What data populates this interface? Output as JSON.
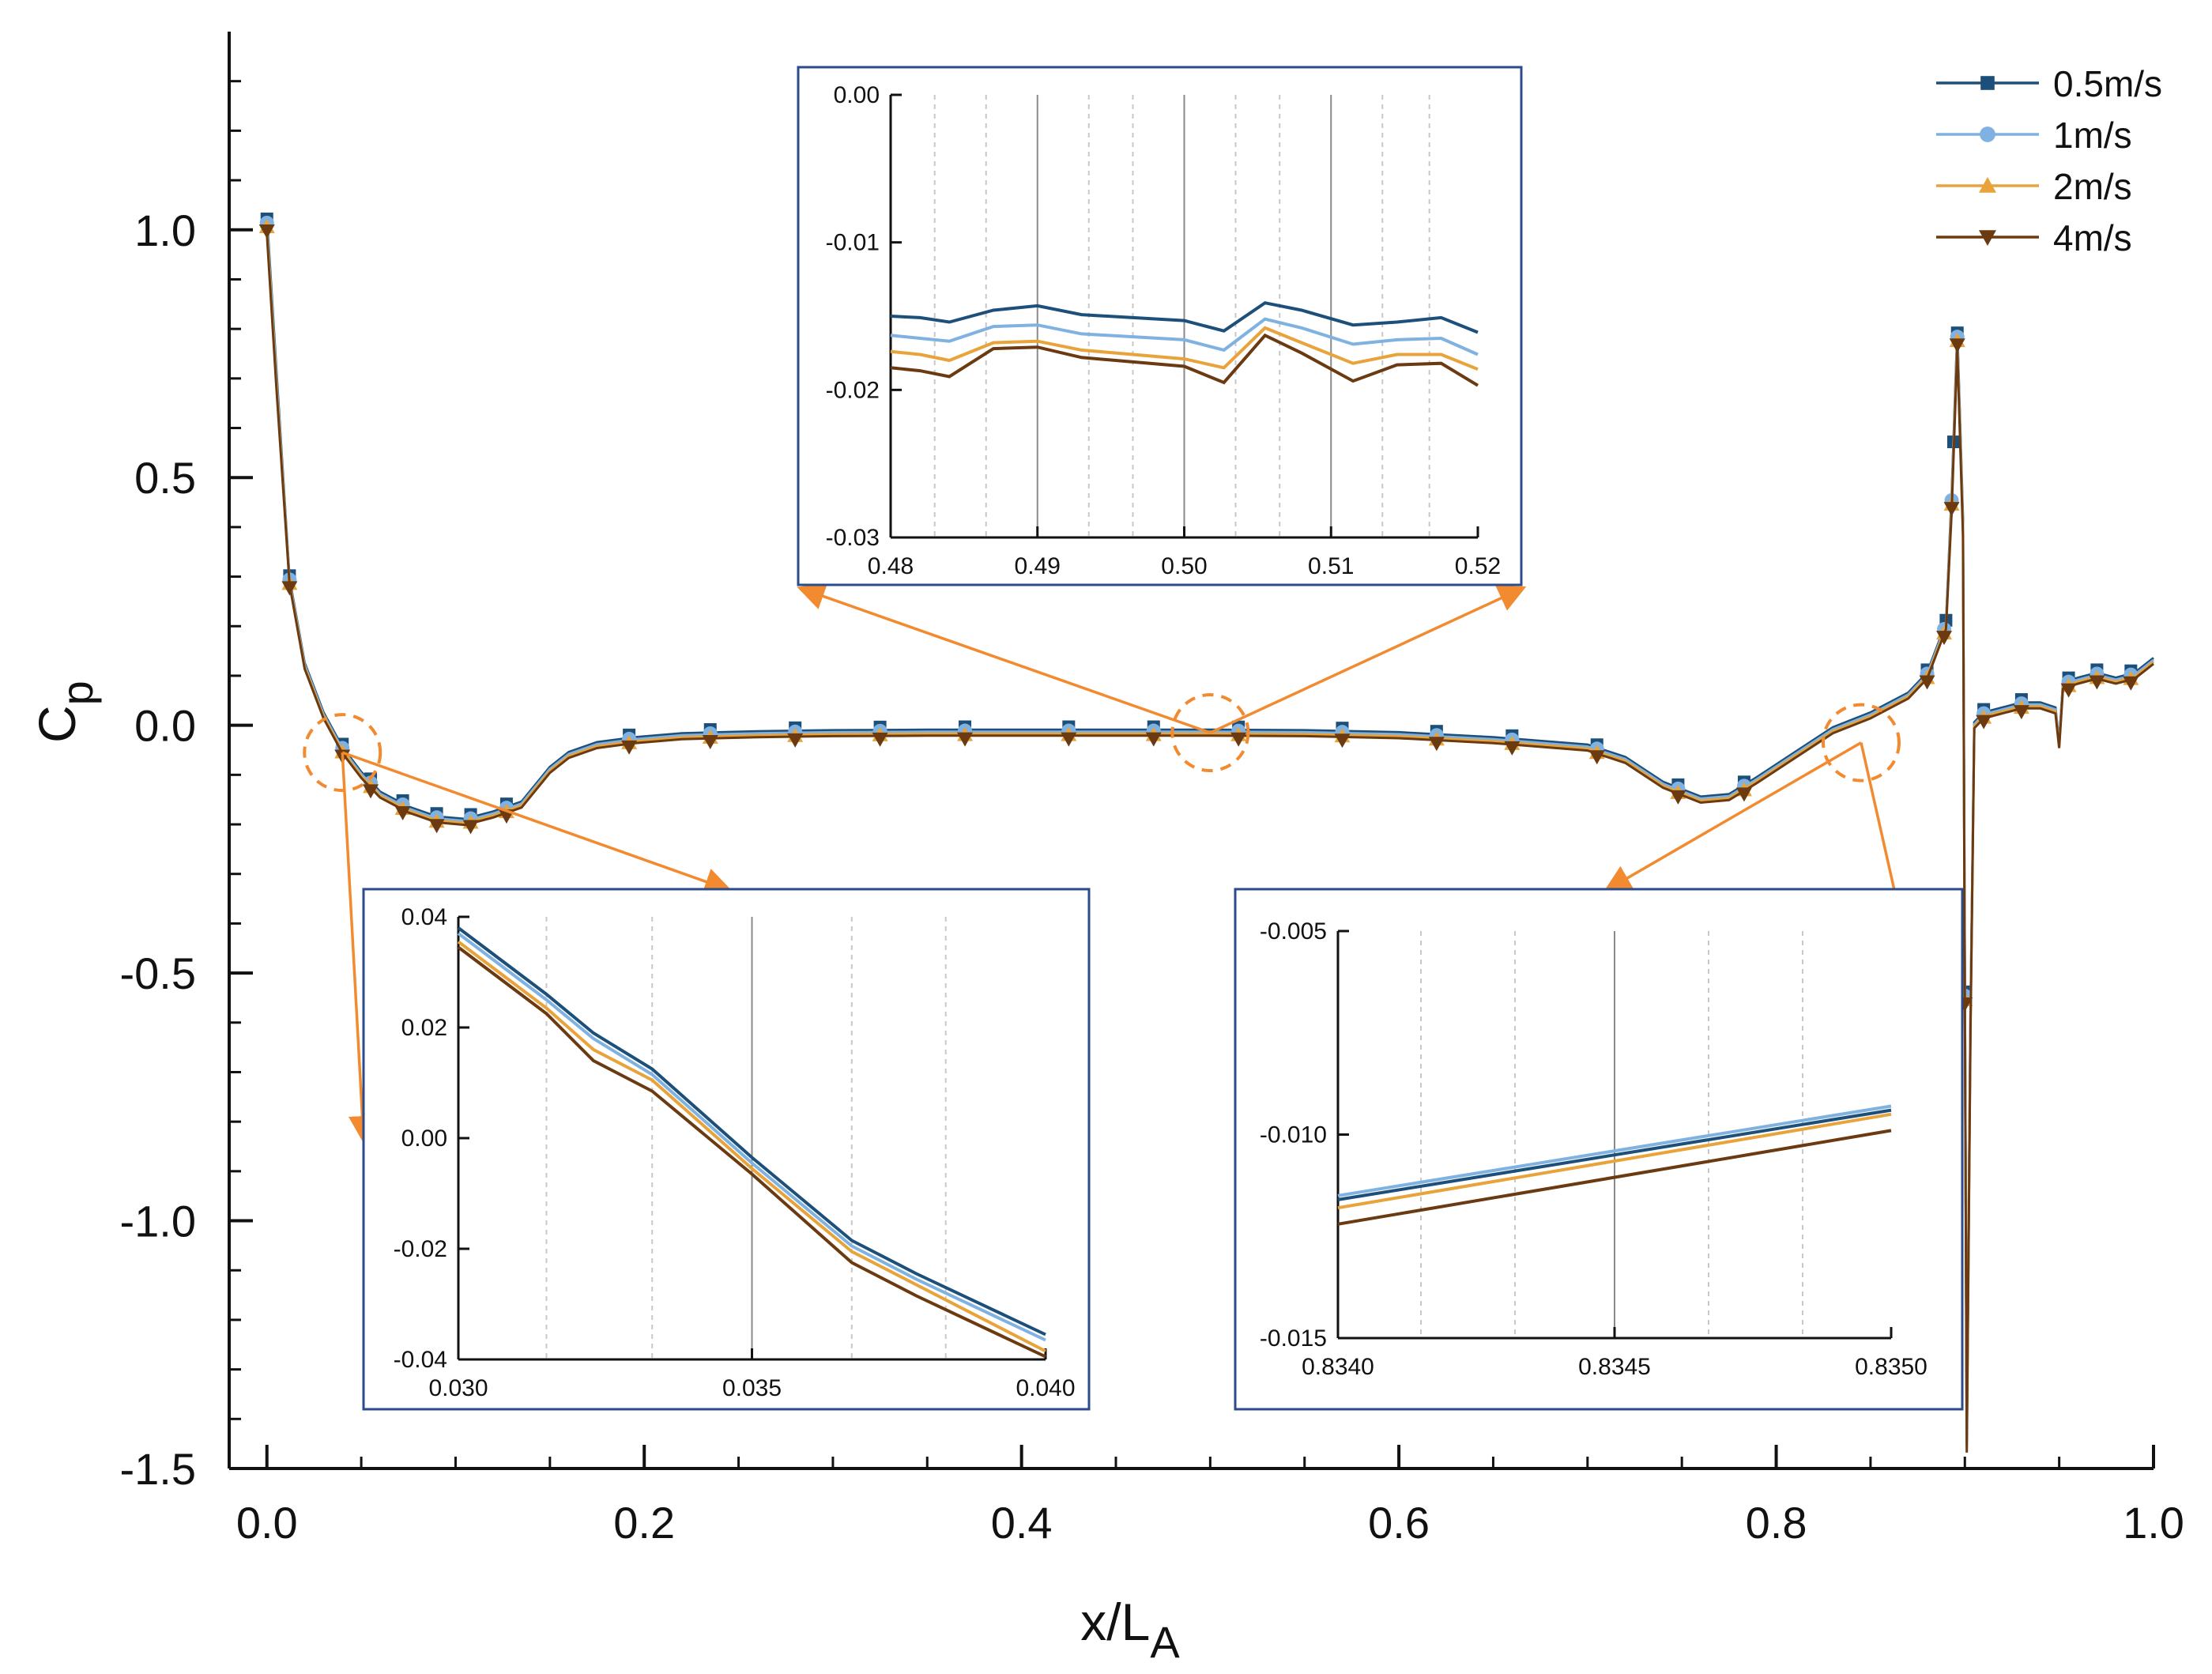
{
  "chart_data": {
    "type": "line",
    "xlabel": "x/L",
    "xlabel_sub": "A",
    "ylabel": "C",
    "ylabel_sub": "p",
    "xlim": [
      -0.02,
      1.0
    ],
    "ylim": [
      -1.5,
      1.4
    ],
    "xticks": [
      0.0,
      0.2,
      0.4,
      0.6,
      0.8,
      1.0
    ],
    "xtick_labels": [
      "0.0",
      "0.2",
      "0.4",
      "0.6",
      "0.8",
      "1.0"
    ],
    "yticks": [
      1.0,
      0.5,
      0.0,
      -0.5,
      -1.0,
      -1.5
    ],
    "ytick_labels": [
      "1.0",
      "0.5",
      "0.0",
      "-0.5",
      "-1.0",
      "-1.5"
    ],
    "legend": {
      "position": "top-right",
      "entries": [
        {
          "label": "0.5m/s",
          "color": "#1c4f7a",
          "marker": "square"
        },
        {
          "label": "1m/s",
          "color": "#7fb2e0",
          "marker": "circle"
        },
        {
          "label": "2m/s",
          "color": "#e8a33a",
          "marker": "triangle-up"
        },
        {
          "label": "4m/s",
          "color": "#6b3a10",
          "marker": "triangle-down"
        }
      ]
    },
    "curve": {
      "x": [
        0.0,
        0.005,
        0.012,
        0.02,
        0.03,
        0.04,
        0.05,
        0.06,
        0.075,
        0.09,
        0.105,
        0.12,
        0.135,
        0.15,
        0.16,
        0.175,
        0.195,
        0.22,
        0.26,
        0.3,
        0.35,
        0.4,
        0.45,
        0.5,
        0.55,
        0.6,
        0.65,
        0.7,
        0.72,
        0.74,
        0.76,
        0.775,
        0.79,
        0.81,
        0.83,
        0.85,
        0.86,
        0.87,
        0.88,
        0.89,
        0.893,
        0.896,
        0.899,
        0.9,
        0.901,
        0.903,
        0.905,
        0.91,
        0.92,
        0.93,
        0.94,
        0.948,
        0.95,
        0.952,
        0.96,
        0.97,
        0.98,
        0.99,
        1.0
      ],
      "y": [
        1.01,
        0.7,
        0.29,
        0.12,
        0.02,
        -0.05,
        -0.1,
        -0.14,
        -0.17,
        -0.19,
        -0.195,
        -0.18,
        -0.16,
        -0.09,
        -0.06,
        -0.04,
        -0.03,
        -0.022,
        -0.018,
        -0.016,
        -0.015,
        -0.015,
        -0.015,
        -0.015,
        -0.016,
        -0.02,
        -0.03,
        -0.045,
        -0.07,
        -0.12,
        -0.15,
        -0.145,
        -0.11,
        -0.06,
        -0.01,
        0.02,
        0.04,
        0.06,
        0.1,
        0.2,
        0.45,
        0.78,
        0.4,
        -0.55,
        -1.45,
        -0.6,
        0.0,
        0.02,
        0.03,
        0.04,
        0.04,
        0.03,
        -0.04,
        0.08,
        0.09,
        0.1,
        0.09,
        0.1,
        0.13
      ]
    },
    "marker_x": {
      "0.5m/s": [
        0.0,
        0.012,
        0.04,
        0.055,
        0.072,
        0.09,
        0.108,
        0.127,
        0.192,
        0.235,
        0.28,
        0.325,
        0.37,
        0.425,
        0.47,
        0.515,
        0.57,
        0.62,
        0.66,
        0.705,
        0.748,
        0.783,
        0.88,
        0.89,
        0.894,
        0.896,
        0.9,
        0.91,
        0.93,
        0.955,
        0.97,
        0.988
      ],
      "1m/s": [
        0.0,
        0.012,
        0.04,
        0.055,
        0.072,
        0.09,
        0.108,
        0.127,
        0.192,
        0.235,
        0.28,
        0.325,
        0.37,
        0.425,
        0.47,
        0.515,
        0.57,
        0.62,
        0.66,
        0.705,
        0.748,
        0.783,
        0.88,
        0.889,
        0.893,
        0.896,
        0.9,
        0.91,
        0.93,
        0.955,
        0.97,
        0.988
      ],
      "2m/s": [
        0.0,
        0.012,
        0.04,
        0.055,
        0.072,
        0.09,
        0.108,
        0.127,
        0.192,
        0.235,
        0.28,
        0.325,
        0.37,
        0.425,
        0.47,
        0.515,
        0.57,
        0.62,
        0.66,
        0.705,
        0.748,
        0.783,
        0.88,
        0.889,
        0.893,
        0.896,
        0.9,
        0.91,
        0.93,
        0.955,
        0.97,
        0.988
      ],
      "4m/s": [
        0.0,
        0.012,
        0.04,
        0.055,
        0.072,
        0.09,
        0.108,
        0.127,
        0.192,
        0.235,
        0.28,
        0.325,
        0.37,
        0.425,
        0.47,
        0.515,
        0.57,
        0.62,
        0.66,
        0.705,
        0.748,
        0.783,
        0.88,
        0.889,
        0.893,
        0.896,
        0.9,
        0.91,
        0.93,
        0.955,
        0.97,
        0.988
      ]
    },
    "insets": [
      {
        "name": "inset-top",
        "zoom_center": [
          0.5,
          -0.015
        ],
        "xlim": [
          0.48,
          0.52
        ],
        "ylim": [
          -0.03,
          0.0
        ],
        "xticks": [
          "0.48",
          "0.49",
          "0.50",
          "0.51",
          "0.52"
        ],
        "xtick_values": [
          0.48,
          0.49,
          0.5,
          0.51,
          0.52
        ],
        "yticks": [
          "0.00",
          "-0.01",
          "-0.02",
          "-0.03"
        ],
        "ytick_values": [
          0.0,
          -0.01,
          -0.02,
          -0.03
        ],
        "solid_grid_x": [
          0.49,
          0.5,
          0.51
        ],
        "dashed_grid_x": [
          0.483,
          0.4865,
          0.4935,
          0.4965,
          0.5035,
          0.5065,
          0.5135,
          0.5167
        ],
        "x": [
          0.48,
          0.482,
          0.484,
          0.487,
          0.49,
          0.493,
          0.4965,
          0.5,
          0.5027,
          0.5055,
          0.508,
          0.5115,
          0.5145,
          0.5175,
          0.52
        ],
        "series": [
          {
            "name": "0.5m/s",
            "color": "#1c4f7a",
            "values": [
              -0.015,
              -0.0151,
              -0.0154,
              -0.0146,
              -0.0143,
              -0.0149,
              -0.0151,
              -0.0153,
              -0.016,
              -0.0141,
              -0.0146,
              -0.0156,
              -0.0154,
              -0.0151,
              -0.0161
            ]
          },
          {
            "name": "1m/s",
            "color": "#7fb2e0",
            "values": [
              -0.0163,
              -0.0165,
              -0.0167,
              -0.0157,
              -0.0156,
              -0.0162,
              -0.0164,
              -0.0166,
              -0.0173,
              -0.0152,
              -0.0158,
              -0.0169,
              -0.0166,
              -0.0165,
              -0.0176
            ]
          },
          {
            "name": "2m/s",
            "color": "#e8a33a",
            "values": [
              -0.0174,
              -0.0176,
              -0.018,
              -0.0168,
              -0.0167,
              -0.0173,
              -0.0176,
              -0.0179,
              -0.0185,
              -0.0158,
              -0.0168,
              -0.0182,
              -0.0176,
              -0.0176,
              -0.0186
            ]
          },
          {
            "name": "4m/s",
            "color": "#6b3a10",
            "values": [
              -0.0185,
              -0.0187,
              -0.0191,
              -0.0172,
              -0.0171,
              -0.0178,
              -0.0181,
              -0.0184,
              -0.0195,
              -0.0163,
              -0.0175,
              -0.0194,
              -0.0183,
              -0.0182,
              -0.0197
            ]
          }
        ]
      },
      {
        "name": "inset-left",
        "zoom_center": [
          0.04,
          0.0
        ],
        "xlim": [
          0.03,
          0.04
        ],
        "ylim": [
          -0.04,
          0.04
        ],
        "xticks": [
          "0.030",
          "0.035",
          "0.040"
        ],
        "xtick_values": [
          0.03,
          0.035,
          0.04
        ],
        "yticks": [
          "0.04",
          "0.02",
          "0.00",
          "-0.02",
          "-0.04"
        ],
        "ytick_values": [
          0.04,
          0.02,
          0.0,
          -0.02,
          -0.04
        ],
        "solid_grid_x": [
          0.035
        ],
        "dashed_grid_x": [
          0.0315,
          0.0333,
          0.0367,
          0.0383
        ],
        "x": [
          0.03,
          0.0315,
          0.0323,
          0.0333,
          0.035,
          0.0367,
          0.0378,
          0.04
        ],
        "series": [
          {
            "name": "0.5m/s",
            "color": "#1c4f7a",
            "values": [
              0.038,
              0.026,
              0.019,
              0.0125,
              -0.0035,
              -0.0185,
              -0.0245,
              -0.0355
            ]
          },
          {
            "name": "1m/s",
            "color": "#7fb2e0",
            "values": [
              0.037,
              0.025,
              0.018,
              0.0115,
              -0.0045,
              -0.0195,
              -0.0255,
              -0.0365
            ]
          },
          {
            "name": "2m/s",
            "color": "#e8a33a",
            "values": [
              0.0355,
              0.0235,
              0.016,
              0.0105,
              -0.0055,
              -0.0205,
              -0.0265,
              -0.0385
            ]
          },
          {
            "name": "4m/s",
            "color": "#6b3a10",
            "values": [
              0.0345,
              0.0225,
              0.014,
              0.0085,
              -0.0065,
              -0.0225,
              -0.0285,
              -0.0395
            ]
          }
        ]
      },
      {
        "name": "inset-right",
        "zoom_center": [
          0.845,
          0.01
        ],
        "xlim": [
          0.834,
          0.835
        ],
        "ylim": [
          -0.015,
          -0.005
        ],
        "xticks": [
          "0.8340",
          "0.8345",
          "0.8350"
        ],
        "xtick_values": [
          0.834,
          0.8345,
          0.835
        ],
        "yticks": [
          "-0.005",
          "-0.010",
          "-0.015"
        ],
        "ytick_values": [
          -0.005,
          -0.01,
          -0.015
        ],
        "solid_grid_x": [
          0.8345
        ],
        "dashed_grid_x": [
          0.83415,
          0.83432,
          0.83467,
          0.83484
        ],
        "x": [
          0.834,
          0.835
        ],
        "series": [
          {
            "name": "0.5m/s",
            "color": "#1c4f7a",
            "values": [
              -0.0116,
              -0.0094
            ]
          },
          {
            "name": "1m/s",
            "color": "#7fb2e0",
            "values": [
              -0.0115,
              -0.0093
            ]
          },
          {
            "name": "2m/s",
            "color": "#e8a33a",
            "values": [
              -0.0118,
              -0.0095
            ]
          },
          {
            "name": "4m/s",
            "color": "#6b3a10",
            "values": [
              -0.0122,
              -0.0099
            ]
          }
        ]
      }
    ],
    "colors": {
      "frame": "#2b4b8c",
      "arrow": "#f28a30",
      "axis": "#111111"
    }
  }
}
